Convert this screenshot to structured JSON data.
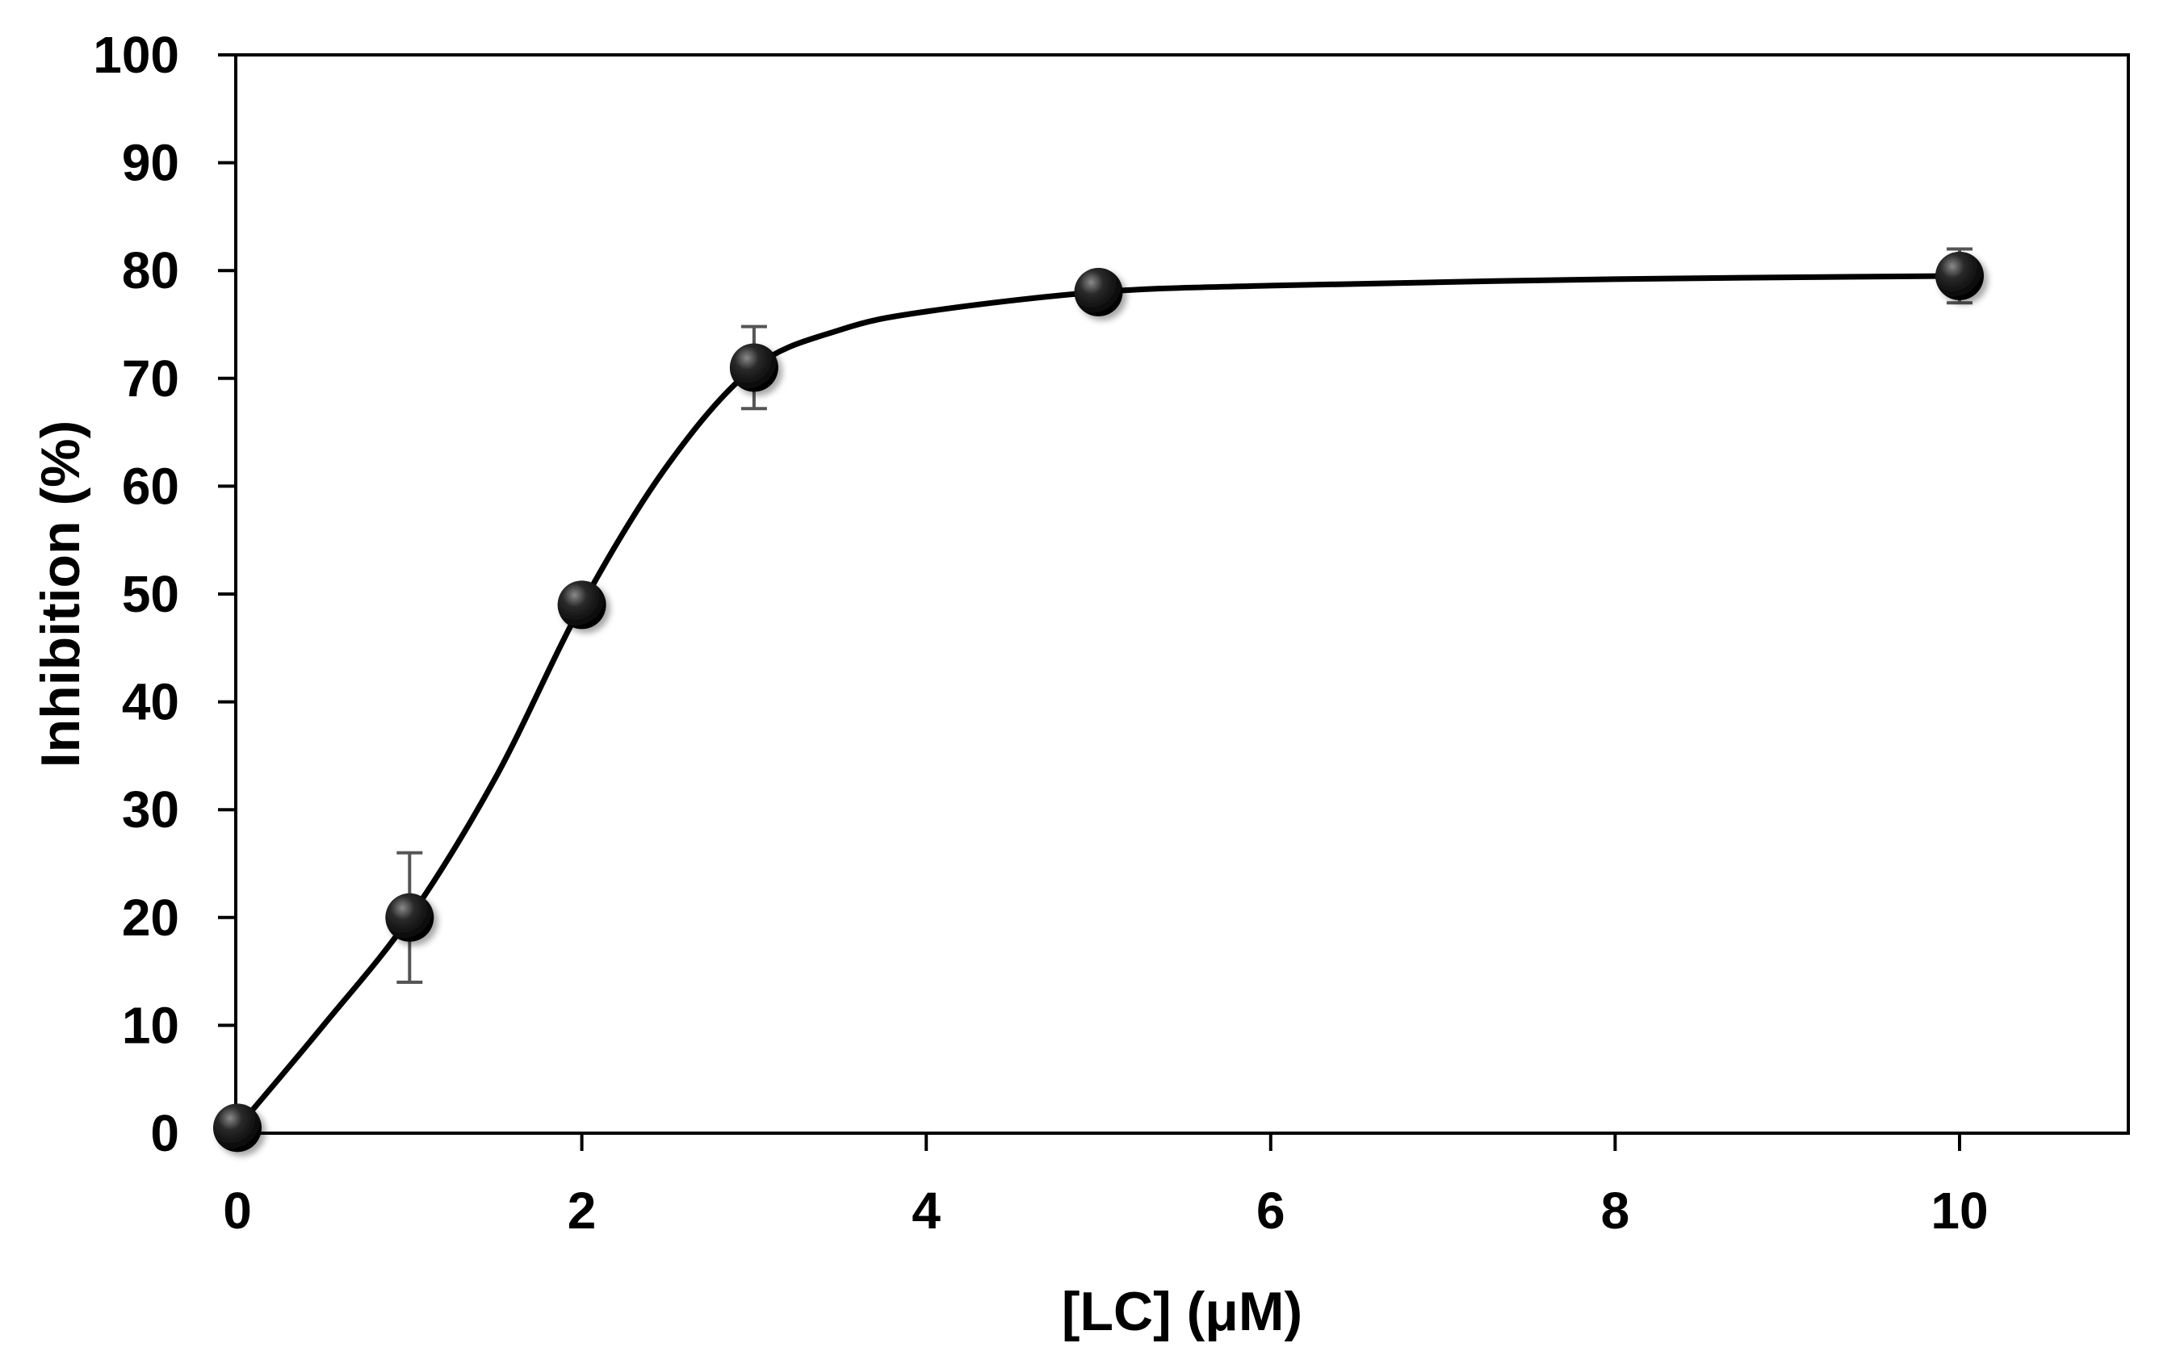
{
  "chart_data": {
    "type": "line",
    "title": "",
    "xlabel": "[LC] (μM)",
    "ylabel": "Inhibition (%)",
    "xlim": [
      0,
      11
    ],
    "ylim": [
      0,
      100
    ],
    "x_ticks": [
      0,
      2,
      4,
      6,
      8,
      10
    ],
    "y_ticks": [
      0,
      10,
      20,
      30,
      40,
      50,
      60,
      70,
      80,
      90,
      100
    ],
    "x_tick_labels": [
      "0",
      "2",
      "4",
      "6",
      "8",
      "10"
    ],
    "y_tick_labels": [
      "0",
      "10",
      "20",
      "30",
      "40",
      "50",
      "60",
      "70",
      "80",
      "90",
      "100"
    ],
    "grid": false,
    "series": [
      {
        "name": "Inhibition",
        "x": [
          0,
          1,
          2,
          3,
          5,
          10
        ],
        "y": [
          0.5,
          20,
          49,
          71,
          78,
          79.5
        ],
        "error": [
          0,
          6,
          0,
          3.8,
          0,
          2.5
        ],
        "marker": "circle",
        "color": "#000000"
      }
    ],
    "fit_curve": {
      "x": [
        0,
        0.5,
        1,
        1.5,
        2,
        2.5,
        3,
        3.5,
        4,
        5,
        6,
        8,
        10
      ],
      "y": [
        0.5,
        10,
        20,
        33,
        49,
        62,
        71,
        74.5,
        76.2,
        78,
        78.6,
        79.2,
        79.5
      ]
    }
  },
  "colors": {
    "axis": "#000000",
    "marker": "#000000",
    "error_bar": "#555555"
  }
}
